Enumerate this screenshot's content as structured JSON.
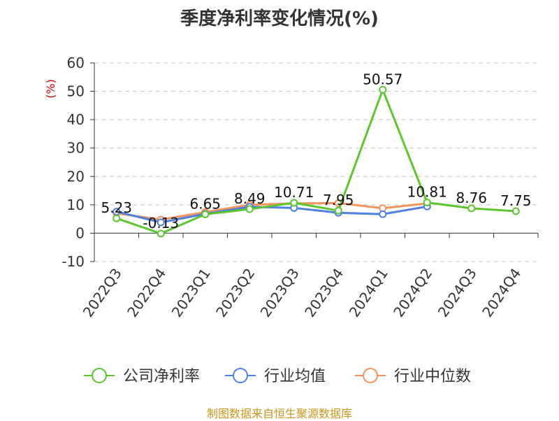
{
  "chart_data": {
    "type": "line",
    "title": "季度净利率变化情况(%)",
    "ylabel": "(%)",
    "xlabel": "",
    "categories": [
      "2022Q3",
      "2022Q4",
      "2023Q1",
      "2023Q2",
      "2023Q3",
      "2023Q4",
      "2024Q1",
      "2024Q2",
      "2024Q3",
      "2024Q4"
    ],
    "ylim": [
      -10,
      60
    ],
    "yticks": [
      -10,
      0,
      10,
      20,
      30,
      40,
      50,
      60
    ],
    "grid": true,
    "legend_position": "bottom",
    "series": [
      {
        "name": "公司净利率",
        "color": "#5cc62f",
        "values": [
          5.23,
          -0.13,
          6.65,
          8.49,
          10.71,
          7.95,
          50.57,
          10.81,
          8.76,
          7.75
        ],
        "labels": [
          "5.23",
          "-0.13",
          "6.65",
          "8.49",
          "10.71",
          "7.95",
          "50.57",
          "10.81",
          "8.76",
          "7.75"
        ]
      },
      {
        "name": "行业均值",
        "color": "#4f7fe0",
        "values": [
          7.6,
          3.8,
          6.8,
          9.3,
          8.9,
          7.2,
          6.7,
          9.4,
          null,
          null
        ]
      },
      {
        "name": "行业中位数",
        "color": "#f4935c",
        "values": [
          7.0,
          4.8,
          7.4,
          10.0,
          10.5,
          10.6,
          8.8,
          10.5,
          null,
          null
        ]
      }
    ]
  },
  "source_text": "制图数据来自恒生聚源数据库"
}
